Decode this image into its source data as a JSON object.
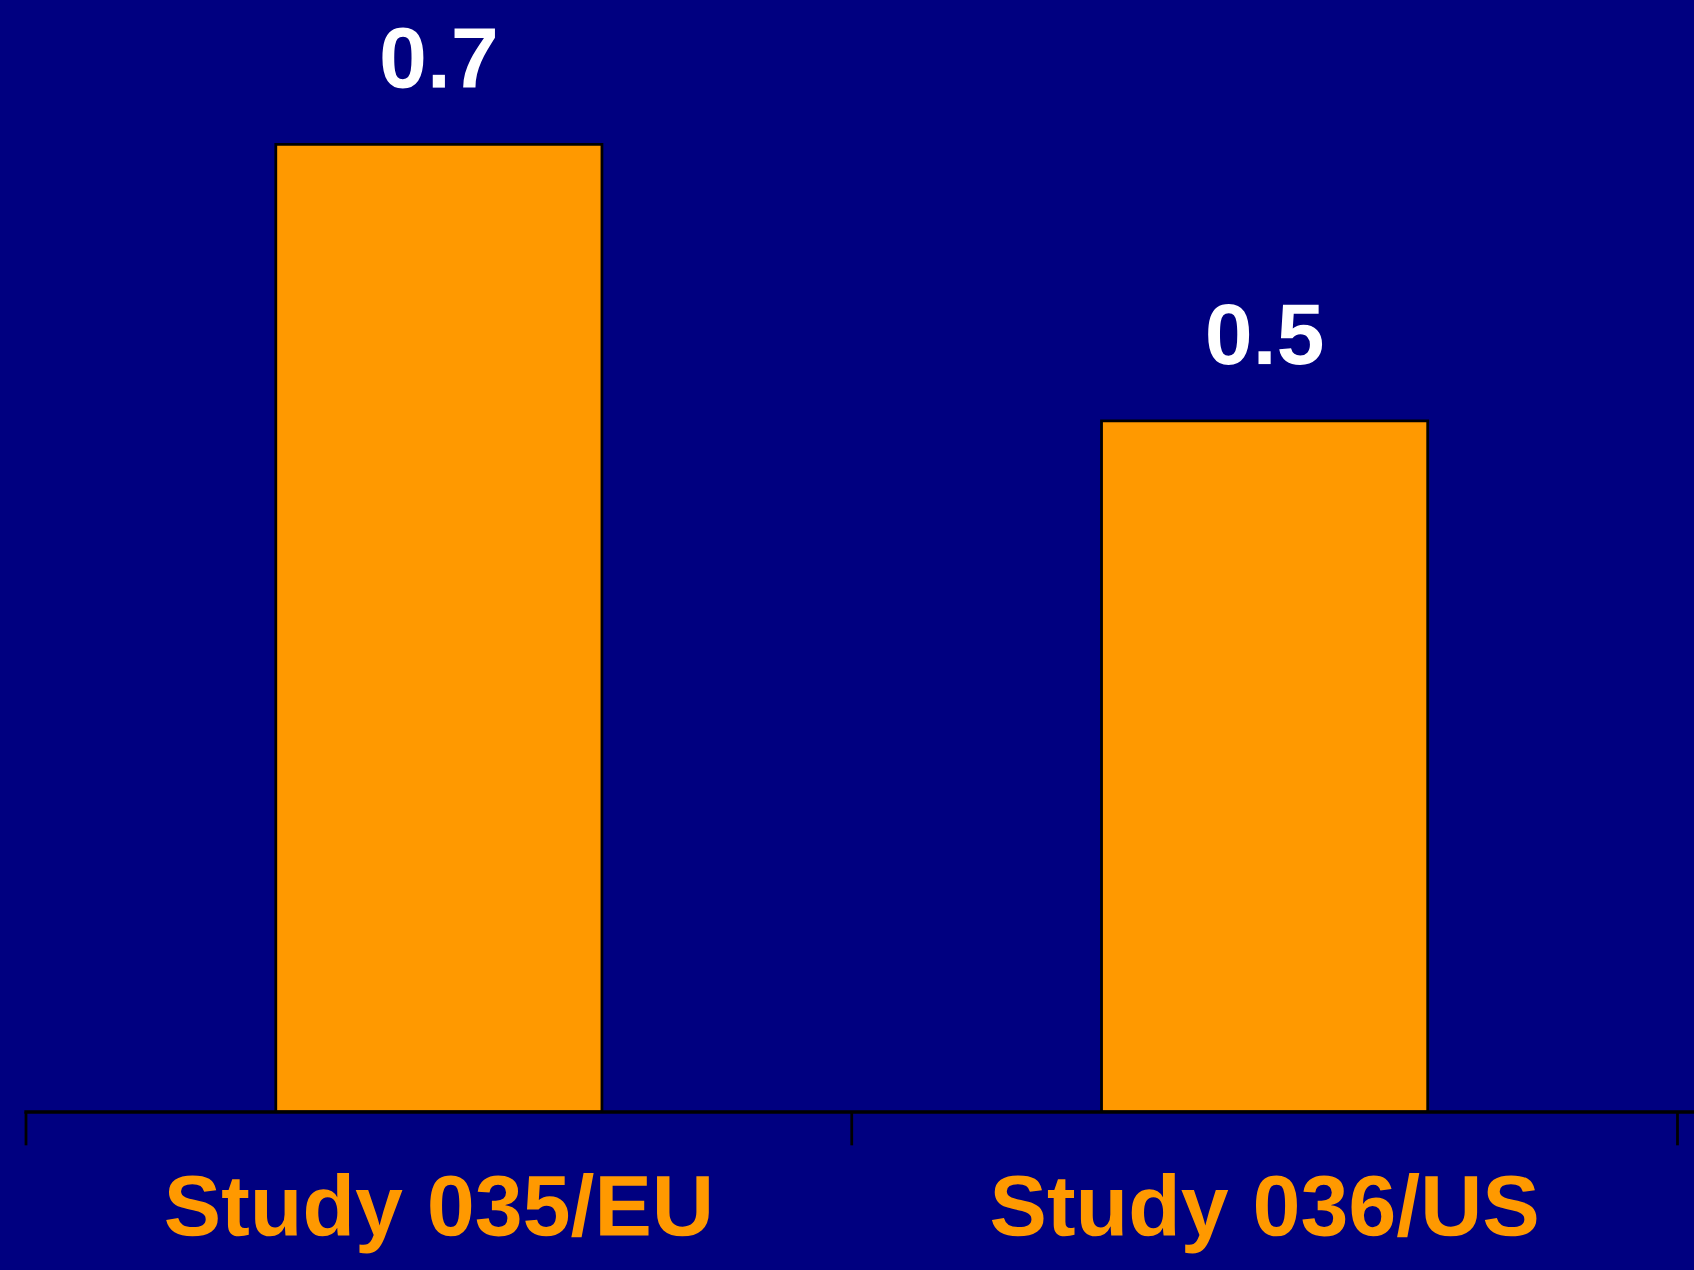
{
  "chart_data": {
    "type": "bar",
    "categories": [
      "Study 035/EU",
      "Study 036/US"
    ],
    "values": [
      0.7,
      0.5
    ],
    "color": "#ff9900",
    "data_labels": true,
    "tick_labels": "x",
    "grid": false,
    "legend": false
  }
}
